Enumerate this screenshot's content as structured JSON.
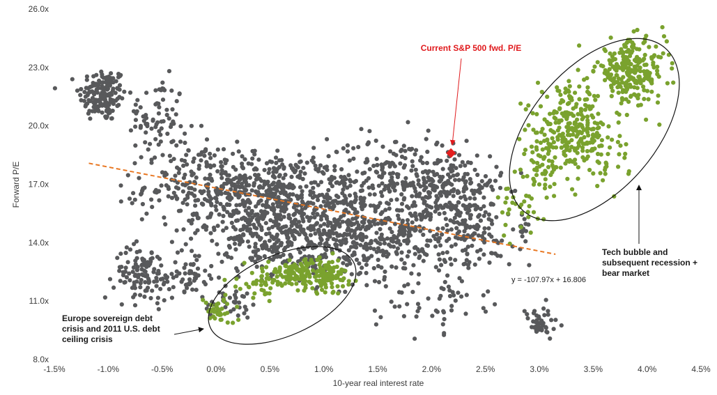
{
  "chart_data": {
    "type": "scatter",
    "xlabel": "10-year real interest rate",
    "ylabel": "Forward P/E",
    "xlim": [
      -0.015,
      0.045
    ],
    "ylim": [
      8,
      26
    ],
    "x_ticks": [
      -0.015,
      -0.01,
      -0.005,
      0,
      0.005,
      0.01,
      0.015,
      0.02,
      0.025,
      0.03,
      0.035,
      0.04,
      0.045
    ],
    "x_tick_labels": [
      "-1.5%",
      "-1.0%",
      "-0.5%",
      "0.0%",
      "0.5%",
      "1.0%",
      "1.5%",
      "2.0%",
      "2.5%",
      "3.0%",
      "3.5%",
      "4.0%",
      "4.5%"
    ],
    "y_ticks": [
      8,
      11,
      14,
      17,
      20,
      23,
      26
    ],
    "y_tick_labels": [
      "8.0x",
      "11.0x",
      "14.0x",
      "17.0x",
      "20.0x",
      "23.0x",
      "26.0x"
    ],
    "grid": false,
    "colors": {
      "history": "#58595b",
      "highlight": "#7aa22e",
      "current": "#e41e1e",
      "trend": "#e87722"
    },
    "series": [
      {
        "role": "history",
        "clusters": [
          {
            "cx": -0.0105,
            "cy": 21.6,
            "sx": 0.0011,
            "sy": 0.7,
            "n": 160
          },
          {
            "cx": -0.0055,
            "cy": 20.4,
            "sx": 0.0013,
            "sy": 1.0,
            "n": 70
          },
          {
            "cx": -0.003,
            "cy": 18.6,
            "sx": 0.0012,
            "sy": 0.6,
            "n": 30
          },
          {
            "cx": 0.0025,
            "cy": 16.9,
            "sx": 0.0045,
            "sy": 0.9,
            "n": 400
          },
          {
            "cx": 0.0045,
            "cy": 15.2,
            "sx": 0.0035,
            "sy": 1.2,
            "n": 320
          },
          {
            "cx": 0.0075,
            "cy": 13.7,
            "sx": 0.004,
            "sy": 0.7,
            "n": 160
          },
          {
            "cx": 0.0105,
            "cy": 16.2,
            "sx": 0.0025,
            "sy": 1.0,
            "n": 120
          },
          {
            "cx": 0.0155,
            "cy": 14.4,
            "sx": 0.0035,
            "sy": 1.1,
            "n": 340
          },
          {
            "cx": 0.0175,
            "cy": 17.6,
            "sx": 0.0035,
            "sy": 0.9,
            "n": 220
          },
          {
            "cx": 0.022,
            "cy": 16.3,
            "sx": 0.0022,
            "sy": 1.1,
            "n": 170
          },
          {
            "cx": 0.024,
            "cy": 14.4,
            "sx": 0.0018,
            "sy": 0.9,
            "n": 100
          },
          {
            "cx": -0.0068,
            "cy": 12.4,
            "sx": 0.0013,
            "sy": 0.7,
            "n": 110
          },
          {
            "cx": -0.0025,
            "cy": 12.2,
            "sx": 0.0013,
            "sy": 0.5,
            "n": 50
          },
          {
            "cx": 0.0015,
            "cy": 10.9,
            "sx": 0.0013,
            "sy": 0.4,
            "n": 35
          },
          {
            "cx": 0.02,
            "cy": 11.1,
            "sx": 0.0025,
            "sy": 0.8,
            "n": 55
          },
          {
            "cx": 0.03,
            "cy": 9.8,
            "sx": 0.0009,
            "sy": 0.45,
            "n": 45
          },
          {
            "cx": 0.0285,
            "cy": 14.4,
            "sx": 0.0004,
            "sy": 0.4,
            "n": 12
          }
        ]
      },
      {
        "role": "highlight-europe-debt-crisis",
        "clusters": [
          {
            "cx": 0.0003,
            "cy": 10.5,
            "sx": 0.0007,
            "sy": 0.35,
            "n": 35
          },
          {
            "cx": 0.0045,
            "cy": 12.0,
            "sx": 0.0012,
            "sy": 0.4,
            "n": 50
          },
          {
            "cx": 0.0075,
            "cy": 12.4,
            "sx": 0.0013,
            "sy": 0.35,
            "n": 110
          },
          {
            "cx": 0.0105,
            "cy": 12.3,
            "sx": 0.0011,
            "sy": 0.45,
            "n": 90
          }
        ]
      },
      {
        "role": "highlight-tech-bubble",
        "clusters": [
          {
            "cx": 0.0385,
            "cy": 22.8,
            "sx": 0.0016,
            "sy": 0.8,
            "n": 240
          },
          {
            "cx": 0.033,
            "cy": 19.9,
            "sx": 0.0016,
            "sy": 1.0,
            "n": 230
          },
          {
            "cx": 0.03,
            "cy": 17.8,
            "sx": 0.001,
            "sy": 1.0,
            "n": 60
          },
          {
            "cx": 0.036,
            "cy": 18.6,
            "sx": 0.0012,
            "sy": 0.8,
            "n": 50
          },
          {
            "cx": 0.028,
            "cy": 15.5,
            "sx": 0.0008,
            "sy": 0.7,
            "n": 25
          }
        ]
      }
    ],
    "current_point": {
      "x": 0.0218,
      "y": 18.6
    },
    "trendline": {
      "slope": -107.97,
      "intercept": 16.806,
      "x_range": [
        -0.0118,
        0.0315
      ]
    },
    "annotations": {
      "current_label": "Current S&P 500 fwd. P/E",
      "equation": "y = -107.97x + 16.806",
      "europe_label": [
        "Europe sovereign debt",
        "crisis and 2011 U.S. debt",
        "ceiling crisis"
      ],
      "tech_label": [
        "Tech bubble and",
        "subsequent recession +",
        "bear market"
      ]
    }
  }
}
